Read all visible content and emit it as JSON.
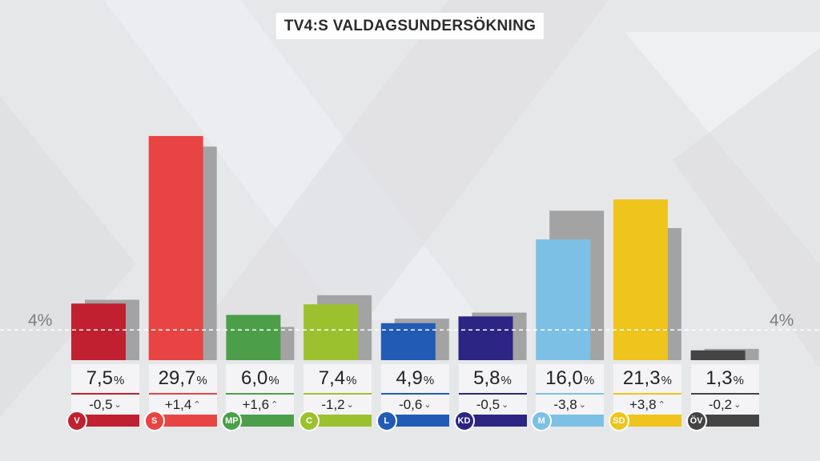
{
  "title": "TV4:S VALDAGSUNDERSÖKNING",
  "threshold_label": "4%",
  "chart_data": {
    "type": "bar",
    "title": "TV4:S VALDAGSUNDERSÖKNING",
    "categories": [
      "V",
      "S",
      "MP",
      "C",
      "L",
      "KD",
      "M",
      "SD",
      "ÖV"
    ],
    "series": [
      {
        "values": [
          7.5,
          29.7,
          6.0,
          7.4,
          4.9,
          5.8,
          16.0,
          21.3,
          1.3
        ]
      },
      {
        "values": [
          8.0,
          28.3,
          4.4,
          8.6,
          5.5,
          6.3,
          19.8,
          17.5,
          1.5
        ]
      }
    ],
    "ylim": [
      0,
      32
    ],
    "threshold": 4,
    "parties": [
      {
        "abbr": "V",
        "value": 7.5,
        "value_label": "7,5",
        "prev": 8.0,
        "change": "-0,5",
        "dir": "down",
        "color": "#c0202f"
      },
      {
        "abbr": "S",
        "value": 29.7,
        "value_label": "29,7",
        "prev": 28.3,
        "change": "+1,4",
        "dir": "up",
        "color": "#e84444"
      },
      {
        "abbr": "MP",
        "value": 6.0,
        "value_label": "6,0",
        "prev": 4.4,
        "change": "+1,6",
        "dir": "up",
        "color": "#4c9f48"
      },
      {
        "abbr": "C",
        "value": 7.4,
        "value_label": "7,4",
        "prev": 8.6,
        "change": "-1,2",
        "dir": "down",
        "color": "#9cc12f"
      },
      {
        "abbr": "L",
        "value": 4.9,
        "value_label": "4,9",
        "prev": 5.5,
        "change": "-0,6",
        "dir": "down",
        "color": "#215bb5"
      },
      {
        "abbr": "KD",
        "value": 5.8,
        "value_label": "5,8",
        "prev": 6.3,
        "change": "-0,5",
        "dir": "down",
        "color": "#2c2584"
      },
      {
        "abbr": "M",
        "value": 16.0,
        "value_label": "16,0",
        "prev": 19.8,
        "change": "-3,8",
        "dir": "down",
        "color": "#7dc0e6"
      },
      {
        "abbr": "SD",
        "value": 21.3,
        "value_label": "21,3",
        "prev": 17.5,
        "change": "+3,8",
        "dir": "up",
        "color": "#efc41c"
      },
      {
        "abbr": "ÖV",
        "value": 1.3,
        "value_label": "1,3",
        "prev": 1.5,
        "change": "-0,2",
        "dir": "down",
        "color": "#444444"
      }
    ],
    "unit": "%",
    "prev_color": "#a3a3a3"
  }
}
